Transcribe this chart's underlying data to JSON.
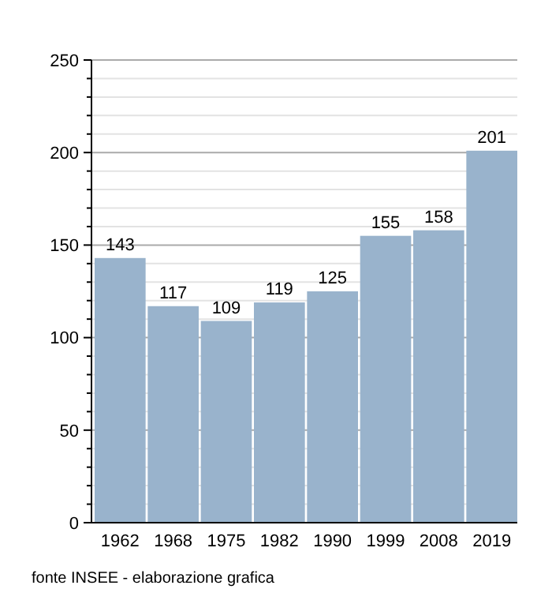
{
  "chart_data": {
    "type": "bar",
    "categories": [
      "1962",
      "1968",
      "1975",
      "1982",
      "1990",
      "1999",
      "2008",
      "2019"
    ],
    "values": [
      143,
      117,
      109,
      119,
      125,
      155,
      158,
      201
    ],
    "color": "#99b3cc",
    "ylim": [
      0,
      250
    ],
    "yticks": [
      0,
      {
        "value": 10,
        "label": null
      },
      {
        "value": 20,
        "label": null
      },
      {
        "value": 30,
        "label": null
      },
      {
        "value": 40,
        "label": null
      },
      50,
      {
        "value": 60,
        "label": null
      },
      {
        "value": 70,
        "label": null
      },
      {
        "value": 80,
        "label": null
      },
      {
        "value": 90,
        "label": null
      },
      100,
      {
        "value": 110,
        "label": null
      },
      {
        "value": 120,
        "label": null
      },
      {
        "value": 130,
        "label": null
      },
      {
        "value": 140,
        "label": null
      },
      150,
      {
        "value": 160,
        "label": null
      },
      {
        "value": 170,
        "label": null
      },
      {
        "value": 180,
        "label": null
      },
      {
        "value": 190,
        "label": null
      },
      200,
      {
        "value": 210,
        "label": null
      },
      {
        "value": 220,
        "label": null
      },
      {
        "value": 230,
        "label": null
      },
      {
        "value": 240,
        "label": null
      },
      250
    ],
    "grid": true,
    "data_labels": true,
    "annotations": [
      "fonte INSEE - elaborazione grafica"
    ]
  }
}
